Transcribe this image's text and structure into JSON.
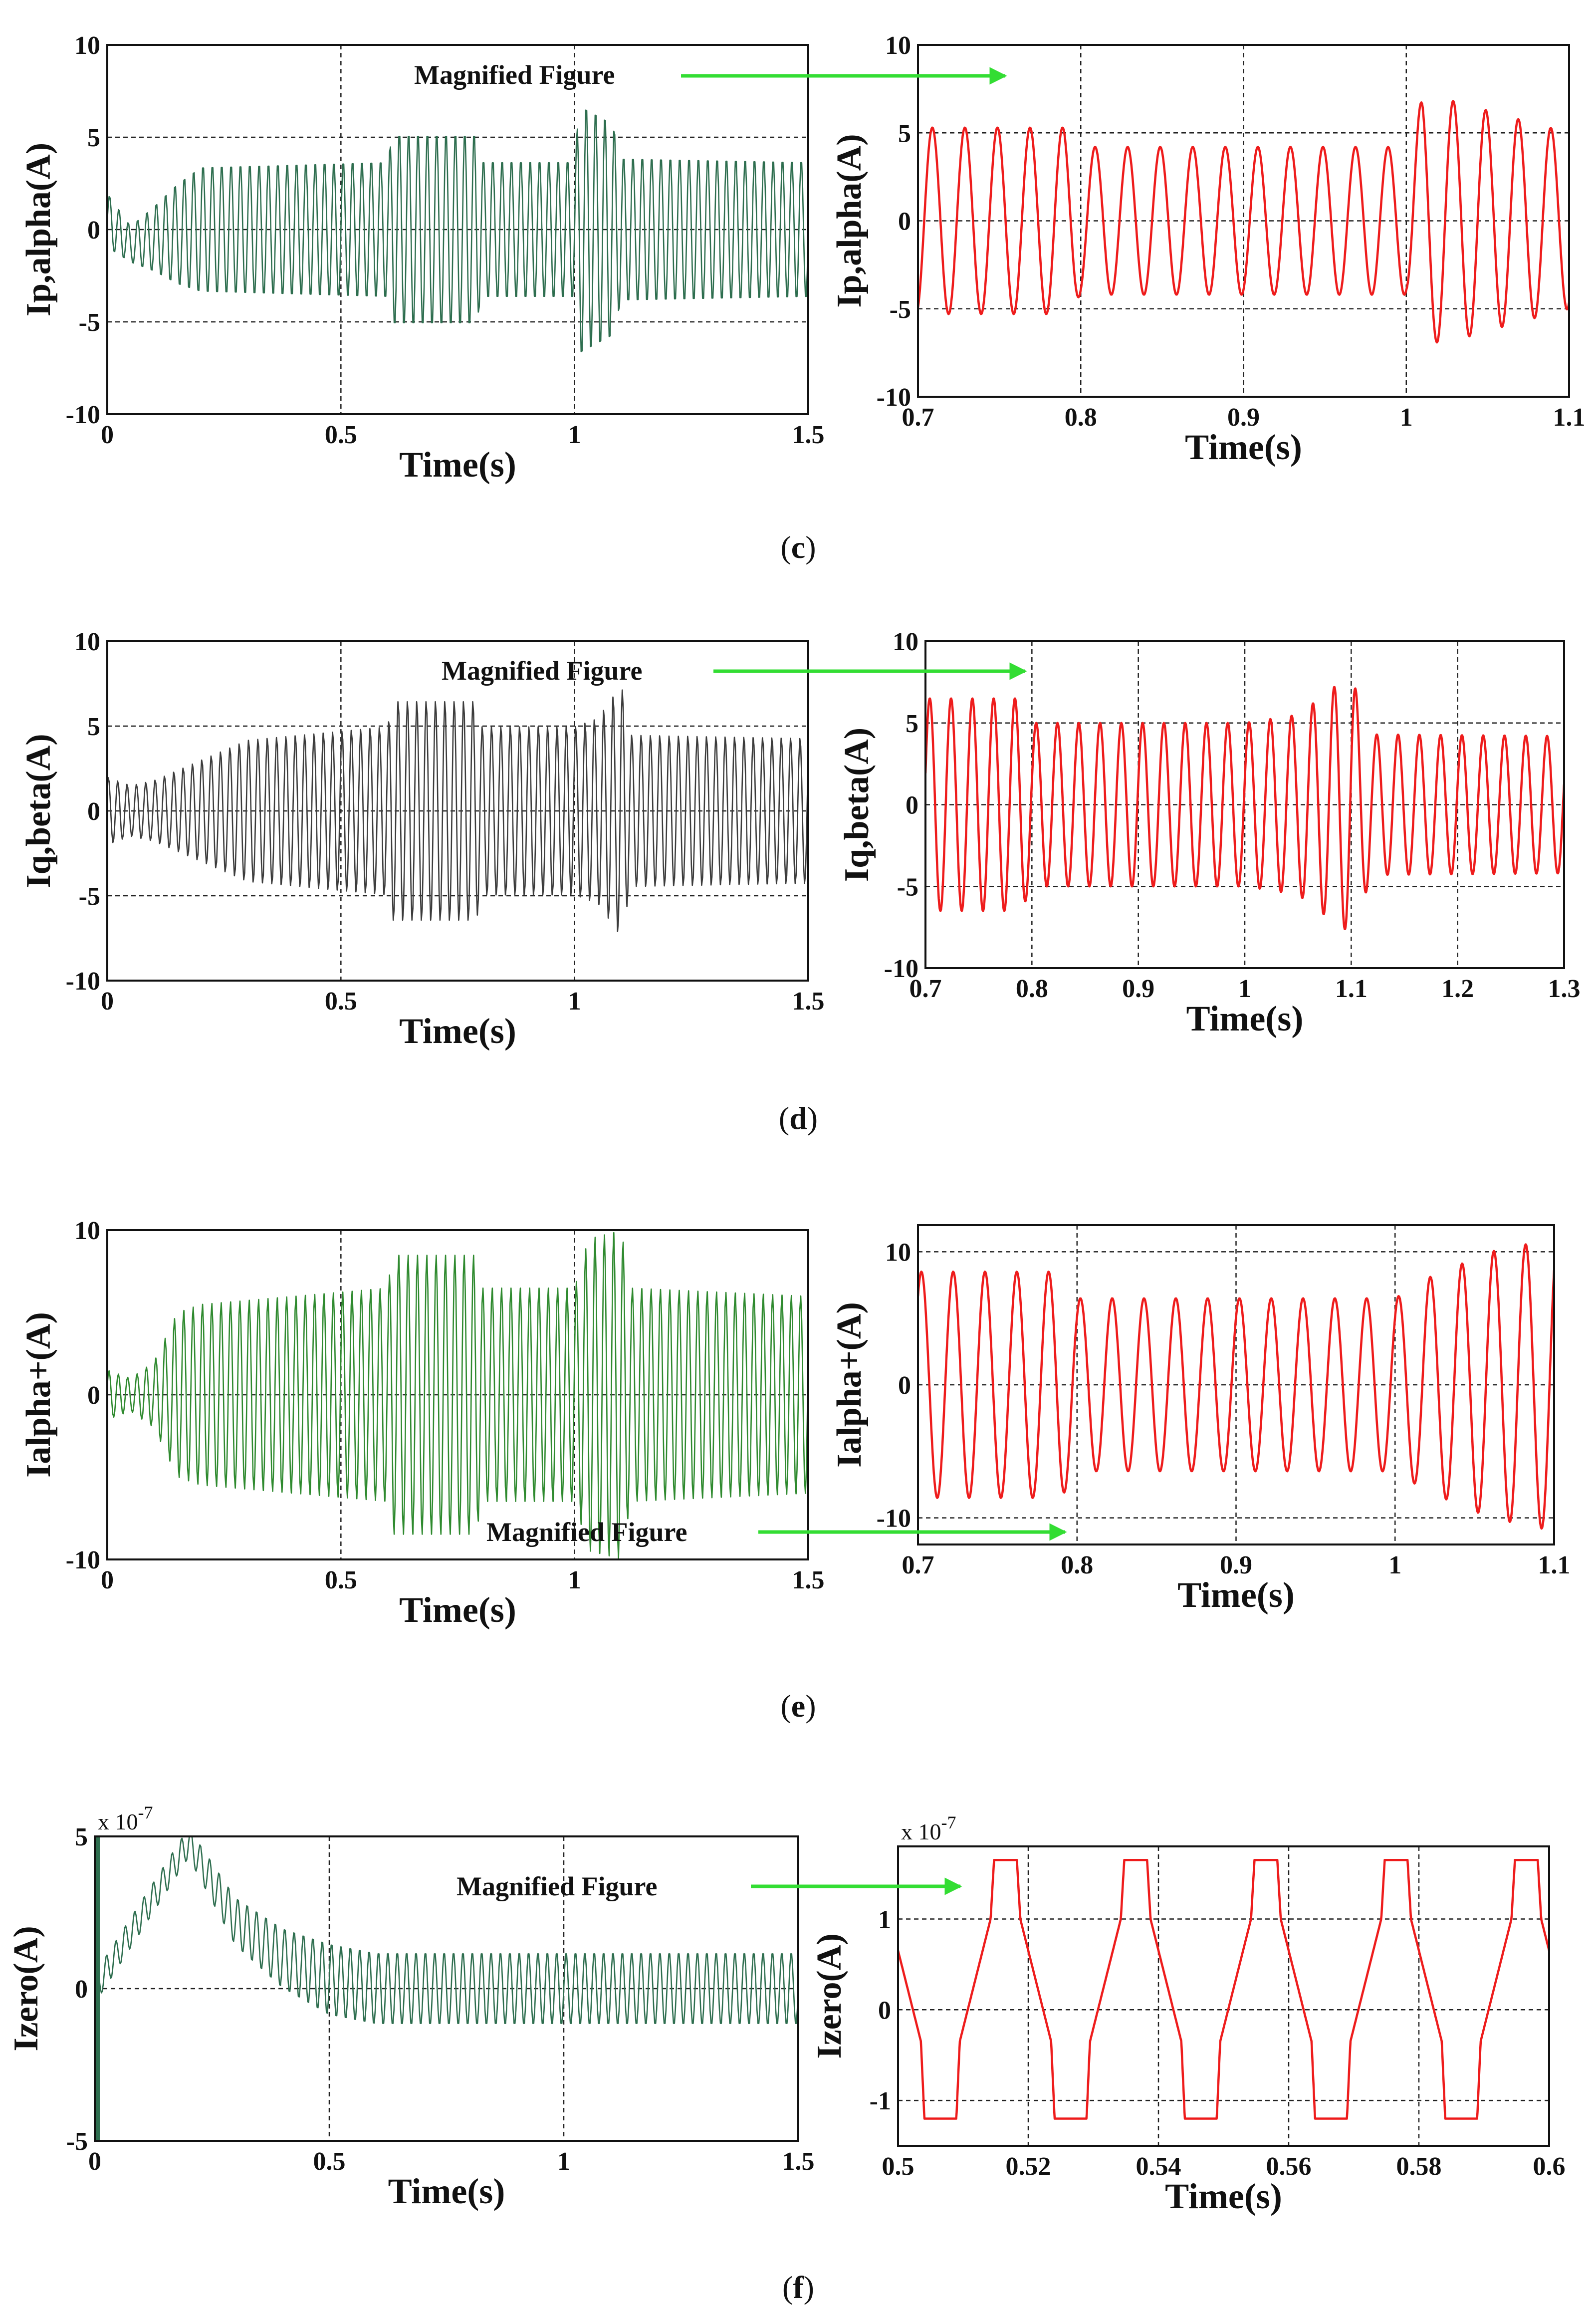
{
  "colors": {
    "green_trace": "#2e6e4f",
    "dark_trace": "#3c3c3c",
    "bright_green_trace": "#2f8a2f",
    "red_trace": "#ee1c1c",
    "annotation_arrow": "#33dd33"
  },
  "annotation": "Magnified Figure",
  "captions": [
    {
      "open": "(",
      "letter": "c",
      "close": ")"
    },
    {
      "open": "(",
      "letter": "d",
      "close": ")"
    },
    {
      "open": "(",
      "letter": "e",
      "close": ")"
    },
    {
      "open": "(",
      "letter": "f",
      "close": ")"
    }
  ],
  "chart_data": [
    {
      "id": "c-left",
      "type": "line",
      "xlabel": "Time(s)",
      "ylabel": "Ip,alpha(A)",
      "exponent": "",
      "xlim": [
        0,
        1.5
      ],
      "ylim": [
        -10,
        10
      ],
      "xticks": [
        0,
        0.5,
        1,
        1.5
      ],
      "xtick_labels": [
        "0",
        "0.5",
        "1",
        "1.5"
      ],
      "yticks": [
        -10,
        -5,
        0,
        5,
        10
      ],
      "ytick_labels": [
        "-10",
        "-5",
        "0",
        "5",
        "10"
      ],
      "series": [
        {
          "name": "Ip,alpha",
          "color_key": "green_trace",
          "frequency_hz": 50,
          "phase": 0,
          "dense": true,
          "envelope": {
            "t": [
              0,
              0.05,
              0.1,
              0.15,
              0.2,
              0.6,
              0.61,
              0.79,
              0.8,
              1.0,
              1.01,
              1.08,
              1.1,
              1.5
            ],
            "amp": [
              1.5,
              1.0,
              1.8,
              2.8,
              3.5,
              3.8,
              5.3,
              5.3,
              3.8,
              3.8,
              7.0,
              6.0,
              4.0,
              3.8
            ]
          },
          "offset": {
            "t": [
              0,
              0.05,
              0.12,
              0.2,
              1.5
            ],
            "v": [
              0.5,
              -0.8,
              -0.4,
              0,
              0
            ]
          }
        }
      ],
      "annotation": "Magnified Figure"
    },
    {
      "id": "c-right",
      "type": "line",
      "xlabel": "Time(s)",
      "ylabel": "Ip,alpha(A)",
      "exponent": "",
      "xlim": [
        0.7,
        1.1
      ],
      "ylim": [
        -10,
        10
      ],
      "xticks": [
        0.7,
        0.8,
        0.9,
        1,
        1.1
      ],
      "xtick_labels": [
        "0.7",
        "0.8",
        "0.9",
        "1",
        "1.1"
      ],
      "yticks": [
        -10,
        -5,
        0,
        5,
        10
      ],
      "ytick_labels": [
        "-10",
        "-5",
        "0",
        "5",
        "10"
      ],
      "series": [
        {
          "name": "Ip,alpha (zoom)",
          "color_key": "red_trace",
          "frequency_hz": 50,
          "phase": -1.2,
          "dense": false,
          "envelope": {
            "t": [
              0.7,
              0.79,
              0.8,
              1.0,
              1.01,
              1.03,
              1.06,
              1.1
            ],
            "amp": [
              5.3,
              5.3,
              4.2,
              4.2,
              7.0,
              6.8,
              6.0,
              5.0
            ]
          },
          "offset": {
            "t": [
              0.7,
              1.1
            ],
            "v": [
              0,
              0
            ]
          }
        }
      ]
    },
    {
      "id": "d-left",
      "type": "line",
      "xlabel": "Time(s)",
      "ylabel": "Iq,beta(A)",
      "exponent": "",
      "xlim": [
        0,
        1.5
      ],
      "ylim": [
        -10,
        10
      ],
      "xticks": [
        0,
        0.5,
        1,
        1.5
      ],
      "xtick_labels": [
        "0",
        "0.5",
        "1",
        "1.5"
      ],
      "yticks": [
        -10,
        -5,
        0,
        5,
        10
      ],
      "ytick_labels": [
        "-10",
        "-5",
        "0",
        "5",
        "10"
      ],
      "series": [
        {
          "name": "Iq,beta",
          "color_key": "dark_trace",
          "frequency_hz": 50,
          "phase": 0.8,
          "dense": true,
          "envelope": {
            "t": [
              0,
              0.05,
              0.1,
              0.2,
              0.3,
              0.6,
              0.61,
              0.79,
              0.8,
              1.0,
              1.05,
              1.1,
              1.12,
              1.5
            ],
            "amp": [
              2.0,
              1.5,
              1.8,
              3.0,
              4.2,
              5.0,
              6.5,
              6.5,
              5.0,
              5.0,
              5.5,
              7.5,
              4.5,
              4.3
            ]
          },
          "offset": {
            "t": [
              0,
              1.5
            ],
            "v": [
              0,
              0
            ]
          }
        }
      ],
      "annotation": "Magnified Figure"
    },
    {
      "id": "d-right",
      "type": "line",
      "xlabel": "Time(s)",
      "ylabel": "Iq,beta(A)",
      "exponent": "",
      "xlim": [
        0.7,
        1.3
      ],
      "ylim": [
        -10,
        10
      ],
      "xticks": [
        0.7,
        0.8,
        0.9,
        1,
        1.1,
        1.2,
        1.3
      ],
      "xtick_labels": [
        "0.7",
        "0.8",
        "0.9",
        "1",
        "1.1",
        "1.2",
        "1.3"
      ],
      "yticks": [
        -10,
        -5,
        0,
        5,
        10
      ],
      "ytick_labels": [
        "-10",
        "-5",
        "0",
        "5",
        "10"
      ],
      "series": [
        {
          "name": "Iq,beta (zoom)",
          "color_key": "red_trace",
          "frequency_hz": 50,
          "phase": 0.3,
          "dense": false,
          "envelope": {
            "t": [
              0.7,
              0.79,
              0.8,
              1.0,
              1.05,
              1.09,
              1.1,
              1.12,
              1.3
            ],
            "amp": [
              6.5,
              6.5,
              5.0,
              5.0,
              5.5,
              7.5,
              7.8,
              4.3,
              4.2
            ]
          },
          "offset": {
            "t": [
              0.7,
              1.3
            ],
            "v": [
              0,
              0
            ]
          }
        }
      ]
    },
    {
      "id": "e-left",
      "type": "line",
      "xlabel": "Time(s)",
      "ylabel": "Ialpha+(A)",
      "exponent": "",
      "xlim": [
        0,
        1.5
      ],
      "ylim": [
        -10,
        10
      ],
      "xticks": [
        0,
        0.5,
        1,
        1.5
      ],
      "xtick_labels": [
        "0",
        "0.5",
        "1",
        "1.5"
      ],
      "yticks": [
        -10,
        0,
        10
      ],
      "ytick_labels": [
        "-10",
        "0",
        "10"
      ],
      "series": [
        {
          "name": "Ialpha+",
          "color_key": "bright_green_trace",
          "frequency_hz": 50,
          "phase": 0.4,
          "dense": true,
          "envelope": {
            "t": [
              0,
              0.05,
              0.1,
              0.15,
              0.2,
              0.6,
              0.61,
              0.79,
              0.8,
              1.0,
              1.03,
              1.1,
              1.12,
              1.5
            ],
            "amp": [
              1.5,
              1.0,
              2.0,
              5.0,
              5.5,
              6.5,
              8.5,
              8.5,
              6.5,
              6.5,
              9.5,
              10.0,
              6.5,
              6.0
            ]
          },
          "offset": {
            "t": [
              0,
              1.5
            ],
            "v": [
              0,
              0
            ]
          }
        }
      ],
      "annotation": "Magnified Figure"
    },
    {
      "id": "e-right",
      "type": "line",
      "xlabel": "Time(s)",
      "ylabel": "Ialpha+(A)",
      "exponent": "",
      "xlim": [
        0.7,
        1.1
      ],
      "ylim": [
        -12,
        12
      ],
      "xticks": [
        0.7,
        0.8,
        0.9,
        1,
        1.1
      ],
      "xtick_labels": [
        "0.7",
        "0.8",
        "0.9",
        "1",
        "1.1"
      ],
      "yticks": [
        -10,
        0,
        10
      ],
      "ytick_labels": [
        "-10",
        "0",
        "10"
      ],
      "series": [
        {
          "name": "Ialpha+ (zoom)",
          "color_key": "red_trace",
          "frequency_hz": 50,
          "phase": 0.9,
          "dense": false,
          "envelope": {
            "t": [
              0.7,
              0.79,
              0.8,
              1.0,
              1.02,
              1.06,
              1.1
            ],
            "amp": [
              8.5,
              8.5,
              6.5,
              6.5,
              8.0,
              10.0,
              11.0
            ]
          },
          "offset": {
            "t": [
              0.7,
              1.1
            ],
            "v": [
              0,
              0
            ]
          }
        }
      ]
    },
    {
      "id": "f-left",
      "type": "line",
      "xlabel": "Time(s)",
      "ylabel": "Izero(A)",
      "exponent": "x 10",
      "exponent_power": "-7",
      "xlim": [
        0,
        1.5
      ],
      "ylim": [
        -5,
        5
      ],
      "xticks": [
        0,
        0.5,
        1,
        1.5
      ],
      "xtick_labels": [
        "0",
        "0.5",
        "1",
        "1.5"
      ],
      "yticks": [
        -5,
        0,
        5
      ],
      "ytick_labels": [
        "-5",
        "0",
        "5"
      ],
      "series": [
        {
          "name": "Izero",
          "color_key": "green_trace",
          "frequency_hz": 50,
          "phase": 0,
          "dense": true,
          "spike_at_start": true,
          "envelope": {
            "t": [
              0,
              0.2,
              0.3,
              0.4,
              0.5,
              1.5
            ],
            "amp": [
              0.5,
              0.5,
              0.8,
              1.0,
              1.2,
              1.2
            ]
          },
          "offset": {
            "t": [
              0,
              0.2,
              0.3,
              0.4,
              0.5,
              0.6,
              1.5
            ],
            "v": [
              0,
              4.8,
              2.2,
              1.0,
              0.3,
              0.0,
              0.0
            ]
          }
        }
      ],
      "annotation": "Magnified Figure"
    },
    {
      "id": "f-right",
      "type": "line",
      "xlabel": "Time(s)",
      "ylabel": "Izero(A)",
      "exponent": "x 10",
      "exponent_power": "-7",
      "xlim": [
        0.5,
        0.6
      ],
      "ylim": [
        -1.5,
        1.8
      ],
      "xticks": [
        0.5,
        0.52,
        0.54,
        0.56,
        0.58,
        0.6
      ],
      "xtick_labels": [
        "0.5",
        "0.52",
        "0.54",
        "0.56",
        "0.58",
        "0.6"
      ],
      "yticks": [
        -1,
        0,
        1
      ],
      "ytick_labels": [
        "-1",
        "0",
        "1"
      ],
      "series": [
        {
          "name": "Izero (zoom)",
          "color_key": "red_trace",
          "frequency_hz": 50,
          "waveform": "clipped-triangle",
          "peak": 1.65,
          "trough": -1.2,
          "clip_high": 1.0,
          "clip_low": -0.35,
          "first_peak_t": 0.5165
        }
      ]
    }
  ]
}
